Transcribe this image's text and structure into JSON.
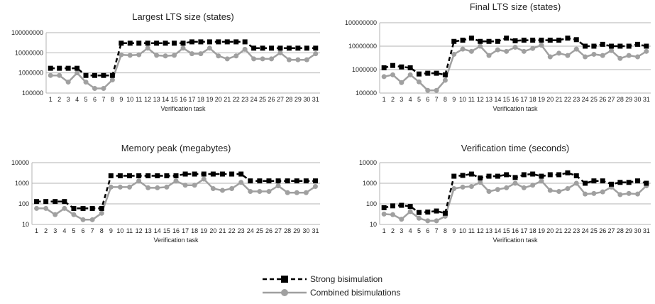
{
  "legend": [
    {
      "label": "Strong bisimulation",
      "color": "#000000",
      "style": "dashed",
      "marker": "square"
    },
    {
      "label": "Combined bisimulations",
      "color": "#a0a0a0",
      "style": "solid",
      "marker": "circle"
    }
  ],
  "chart_data": [
    {
      "type": "line",
      "title": "Largest LTS size (states)",
      "xlabel": "Verification task",
      "ylabel": "",
      "yscale": "log",
      "ylim": [
        100000,
        100000000
      ],
      "yticks": [
        "100000",
        "1000000",
        "10000000",
        "100000000"
      ],
      "x": [
        "1",
        "2",
        "3",
        "4",
        "5",
        "6",
        "7",
        "8",
        "9",
        "10",
        "11",
        "12",
        "13",
        "14",
        "15",
        "16",
        "17",
        "18",
        "19",
        "20",
        "21",
        "22",
        "23",
        "24",
        "25",
        "26",
        "27",
        "28",
        "29",
        "30",
        "31"
      ],
      "series": [
        {
          "name": "Strong bisimulation",
          "values": [
            1700000,
            1700000,
            1700000,
            1700000,
            750000,
            750000,
            750000,
            750000,
            30000000,
            30000000,
            30000000,
            30000000,
            30000000,
            30000000,
            30000000,
            30000000,
            35000000,
            35000000,
            35000000,
            35000000,
            35000000,
            35000000,
            35000000,
            17000000,
            17000000,
            17000000,
            17000000,
            17000000,
            17000000,
            17000000,
            17000000
          ]
        },
        {
          "name": "Combined bisimulations",
          "values": [
            750000,
            750000,
            350000,
            1000000,
            350000,
            170000,
            170000,
            450000,
            8000000,
            7500000,
            8000000,
            17000000,
            7500000,
            7000000,
            7500000,
            17000000,
            9000000,
            9000000,
            17000000,
            7000000,
            5000000,
            7000000,
            15000000,
            5000000,
            5000000,
            5000000,
            10000000,
            4500000,
            4500000,
            4500000,
            9000000
          ]
        }
      ]
    },
    {
      "type": "line",
      "title": "Final LTS size (states)",
      "xlabel": "Verification task",
      "ylabel": "",
      "yscale": "log",
      "ylim": [
        100000,
        100000000
      ],
      "yticks": [
        "100000",
        "1000000",
        "10000000",
        "100000000"
      ],
      "x": [
        "1",
        "2",
        "3",
        "4",
        "5",
        "6",
        "7",
        "8",
        "9",
        "10",
        "11",
        "12",
        "13",
        "14",
        "15",
        "16",
        "17",
        "18",
        "19",
        "20",
        "21",
        "22",
        "23",
        "24",
        "25",
        "26",
        "27",
        "28",
        "29",
        "30",
        "31"
      ],
      "series": [
        {
          "name": "Strong bisimulation",
          "values": [
            1200000,
            1500000,
            1300000,
            1200000,
            650000,
            700000,
            700000,
            600000,
            16000000,
            18000000,
            22000000,
            16000000,
            16000000,
            16000000,
            22000000,
            17000000,
            18000000,
            18000000,
            18000000,
            18000000,
            18000000,
            22000000,
            19000000,
            10000000,
            10000000,
            12000000,
            10000000,
            10000000,
            10000000,
            12000000,
            10000000
          ]
        },
        {
          "name": "Combined bisimulations",
          "values": [
            500000,
            600000,
            280000,
            600000,
            300000,
            130000,
            130000,
            350000,
            4500000,
            7500000,
            6000000,
            10000000,
            4000000,
            7000000,
            6000000,
            9000000,
            6000000,
            8000000,
            11000000,
            3500000,
            5000000,
            4000000,
            7500000,
            3500000,
            4500000,
            4000000,
            6500000,
            3000000,
            4000000,
            3500000,
            6000000
          ]
        }
      ]
    },
    {
      "type": "line",
      "title": "Memory peak (megabytes)",
      "xlabel": "Verification task",
      "ylabel": "",
      "yscale": "log",
      "ylim": [
        10,
        10000
      ],
      "yticks": [
        "10",
        "100",
        "1000",
        "10000"
      ],
      "x": [
        "1",
        "2",
        "3",
        "4",
        "5",
        "6",
        "7",
        "8",
        "9",
        "10",
        "11",
        "12",
        "13",
        "14",
        "15",
        "16",
        "17",
        "18",
        "19",
        "20",
        "21",
        "22",
        "23",
        "24",
        "25",
        "26",
        "27",
        "28",
        "29",
        "30",
        "31"
      ],
      "series": [
        {
          "name": "Strong bisimulation",
          "values": [
            130,
            130,
            130,
            130,
            60,
            60,
            60,
            60,
            2300,
            2300,
            2300,
            2300,
            2300,
            2300,
            2300,
            2300,
            2800,
            2800,
            2800,
            2800,
            2800,
            2800,
            2800,
            1300,
            1300,
            1300,
            1300,
            1300,
            1300,
            1300,
            1300
          ]
        },
        {
          "name": "Combined bisimulations",
          "values": [
            60,
            60,
            30,
            60,
            30,
            17,
            17,
            35,
            650,
            650,
            650,
            1300,
            600,
            600,
            650,
            1300,
            800,
            800,
            1600,
            550,
            450,
            550,
            1100,
            400,
            400,
            400,
            750,
            350,
            350,
            350,
            700
          ]
        }
      ]
    },
    {
      "type": "line",
      "title": "Verification time (seconds)",
      "xlabel": "Verification task",
      "ylabel": "",
      "yscale": "log",
      "ylim": [
        10,
        10000
      ],
      "yticks": [
        "10",
        "100",
        "1000",
        "10000"
      ],
      "x": [
        "1",
        "2",
        "3",
        "4",
        "5",
        "6",
        "7",
        "8",
        "9",
        "10",
        "11",
        "12",
        "13",
        "14",
        "15",
        "16",
        "17",
        "18",
        "19",
        "20",
        "21",
        "22",
        "23",
        "24",
        "25",
        "26",
        "27",
        "28",
        "29",
        "30",
        "31"
      ],
      "series": [
        {
          "name": "Strong bisimulation",
          "values": [
            65,
            80,
            85,
            75,
            38,
            40,
            45,
            35,
            2200,
            2400,
            2800,
            1800,
            2200,
            2200,
            2600,
            1900,
            2600,
            2800,
            2200,
            2600,
            2600,
            3200,
            2300,
            1000,
            1300,
            1300,
            900,
            1100,
            1100,
            1300,
            1000
          ]
        },
        {
          "name": "Combined bisimulations",
          "values": [
            32,
            30,
            18,
            42,
            20,
            15,
            15,
            25,
            550,
            650,
            700,
            1100,
            400,
            500,
            600,
            1000,
            600,
            800,
            1300,
            450,
            400,
            550,
            1000,
            300,
            320,
            380,
            650,
            280,
            320,
            300,
            750
          ]
        }
      ]
    }
  ]
}
